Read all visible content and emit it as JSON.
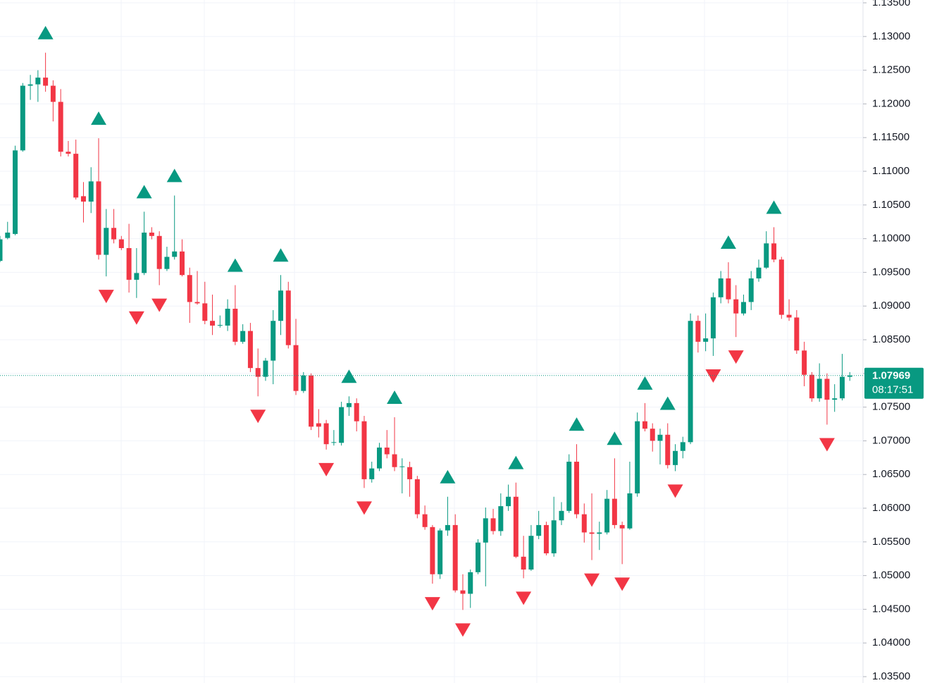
{
  "chart_data": {
    "type": "candlestick",
    "up_color": "#089981",
    "down_color": "#f23645",
    "grid": true,
    "ylim": [
      1.035,
      1.135
    ],
    "yticks": [
      {
        "value": 1.035,
        "label": "1.03500"
      },
      {
        "value": 1.04,
        "label": "1.04000"
      },
      {
        "value": 1.045,
        "label": "1.04500"
      },
      {
        "value": 1.05,
        "label": "1.05000"
      },
      {
        "value": 1.055,
        "label": "1.05500"
      },
      {
        "value": 1.06,
        "label": "1.06000"
      },
      {
        "value": 1.065,
        "label": "1.06500"
      },
      {
        "value": 1.07,
        "label": "1.07000"
      },
      {
        "value": 1.075,
        "label": "1.07500"
      },
      {
        "value": 1.08,
        "label": "1.08000"
      },
      {
        "value": 1.085,
        "label": "1.08500"
      },
      {
        "value": 1.09,
        "label": "1.09000"
      },
      {
        "value": 1.095,
        "label": "1.09500"
      },
      {
        "value": 1.1,
        "label": "1.10000"
      },
      {
        "value": 1.105,
        "label": "1.10500"
      },
      {
        "value": 1.11,
        "label": "1.11000"
      },
      {
        "value": 1.115,
        "label": "1.11500"
      },
      {
        "value": 1.12,
        "label": "1.12000"
      },
      {
        "value": 1.125,
        "label": "1.12500"
      },
      {
        "value": 1.13,
        "label": "1.13000"
      },
      {
        "value": 1.135,
        "label": "1.13500"
      }
    ],
    "open": [
      1.0967,
      1.1001,
      1.1007,
      1.1131,
      1.1227,
      1.1229,
      1.1239,
      1.1227,
      1.1203,
      1.1129,
      1.1126,
      1.1063,
      1.1055,
      1.1085,
      1.0976,
      1.1016,
      1.0999,
      1.0986,
      1.0939,
      1.0949,
      1.1009,
      1.1004,
      1.0955,
      1.0973,
      1.0981,
      1.0946,
      1.0906,
      1.0904,
      1.0878,
      1.0871,
      1.0871,
      1.0896,
      1.0847,
      1.0863,
      1.0808,
      1.0795,
      1.0819,
      1.0878,
      1.0923,
      1.0842,
      1.0774,
      1.0797,
      1.0726,
      1.0726,
      1.0697,
      1.0697,
      1.075,
      1.0756,
      1.0729,
      1.0643,
      1.0659,
      1.069,
      1.068,
      1.0661,
      1.0661,
      1.0643,
      1.0591,
      1.0572,
      1.0502,
      1.0567,
      1.0575,
      1.0478,
      1.0473,
      1.0505,
      1.0549,
      1.0585,
      1.0566,
      1.0603,
      1.0617,
      1.0528,
      1.0509,
      1.0559,
      1.0575,
      1.0533,
      1.0582,
      1.0596,
      1.0669,
      1.0591,
      1.0564,
      1.0562,
      1.0564,
      1.0614,
      1.0575,
      1.057,
      1.0622,
      1.0729,
      1.0718,
      1.07,
      1.0709,
      1.0664,
      1.0685,
      1.0698,
      1.0878,
      1.0847,
      1.0852,
      1.0913,
      1.0941,
      1.091,
      1.0889,
      1.0906,
      1.0941,
      1.0957,
      1.0993,
      1.0969,
      1.0887,
      1.0883,
      1.0834,
      1.0798,
      1.0763,
      1.0792,
      1.0761,
      1.0763,
      1.0795
    ],
    "high": [
      1.1004,
      1.1025,
      1.1138,
      1.1231,
      1.1243,
      1.125,
      1.1276,
      1.1235,
      1.1222,
      1.1145,
      1.1147,
      1.1084,
      1.1106,
      1.1149,
      1.1044,
      1.1044,
      1.1004,
      1.1022,
      1.0986,
      1.104,
      1.1017,
      1.1011,
      1.0988,
      1.1064,
      1.0999,
      1.0957,
      1.0952,
      1.0936,
      1.0917,
      1.0886,
      1.091,
      1.0931,
      1.0873,
      1.0875,
      1.0837,
      1.0823,
      1.0894,
      1.0946,
      1.0936,
      1.0881,
      1.0802,
      1.08,
      1.0747,
      1.0731,
      1.0716,
      1.0758,
      1.0766,
      1.0763,
      1.0737,
      1.0669,
      1.0697,
      1.0716,
      1.0735,
      1.0674,
      1.0669,
      1.0648,
      1.0604,
      1.0575,
      1.057,
      1.0617,
      1.0591,
      1.0502,
      1.0509,
      1.0554,
      1.0601,
      1.0599,
      1.0622,
      1.0635,
      1.0638,
      1.0559,
      1.0575,
      1.0596,
      1.058,
      1.0617,
      1.0609,
      1.068,
      1.0695,
      1.0607,
      1.0622,
      1.058,
      1.0627,
      1.0674,
      1.058,
      1.0669,
      1.0742,
      1.0756,
      1.0726,
      1.0718,
      1.0726,
      1.0695,
      1.0706,
      1.0889,
      1.0886,
      1.0889,
      1.092,
      1.0952,
      1.0965,
      1.0931,
      1.0917,
      1.0952,
      1.0969,
      1.1011,
      1.1017,
      1.0973,
      1.091,
      1.0894,
      1.0847,
      1.0802,
      1.0815,
      1.08,
      1.0784,
      1.0829,
      1.0802
    ],
    "low": [
      1.0965,
      1.0999,
      1.1005,
      1.1129,
      1.1206,
      1.1203,
      1.1218,
      1.1174,
      1.1122,
      1.1122,
      1.1058,
      1.1024,
      1.1038,
      1.0969,
      1.0944,
      1.0993,
      1.0983,
      1.092,
      1.0912,
      1.0946,
      1.0999,
      1.0931,
      1.0952,
      1.0969,
      1.0944,
      1.0875,
      1.0902,
      1.0873,
      1.0857,
      1.0868,
      1.0863,
      1.0842,
      1.0844,
      1.0802,
      1.0766,
      1.0789,
      1.0784,
      1.0857,
      1.0837,
      1.0768,
      1.0771,
      1.0716,
      1.0705,
      1.0687,
      1.0693,
      1.0693,
      1.0737,
      1.0714,
      1.063,
      1.0638,
      1.0655,
      1.0674,
      1.0655,
      1.0622,
      1.0617,
      1.0585,
      1.0568,
      1.0488,
      1.0495,
      1.0559,
      1.0475,
      1.0449,
      1.0452,
      1.0502,
      1.0484,
      1.0561,
      1.0559,
      1.0596,
      1.0526,
      1.0496,
      1.0507,
      1.0554,
      1.053,
      1.0528,
      1.0575,
      1.0593,
      1.0585,
      1.0549,
      1.0523,
      1.0538,
      1.0561,
      1.057,
      1.0517,
      1.0568,
      1.0617,
      1.0714,
      1.0684,
      1.0665,
      1.0659,
      1.0655,
      1.0674,
      1.0695,
      1.0831,
      1.0833,
      1.0826,
      1.0904,
      1.0904,
      1.0854,
      1.0886,
      1.0894,
      1.0936,
      1.0955,
      1.0965,
      1.0881,
      1.0878,
      1.0829,
      1.0781,
      1.0758,
      1.0758,
      1.0724,
      1.0743,
      1.076,
      1.0789
    ],
    "close": [
      1.0999,
      1.1009,
      1.1131,
      1.1227,
      1.1229,
      1.1239,
      1.1227,
      1.1203,
      1.1129,
      1.1126,
      1.1061,
      1.1055,
      1.1085,
      1.0976,
      1.1016,
      1.0999,
      1.0986,
      1.0939,
      1.0949,
      1.1009,
      1.1004,
      1.0955,
      1.0973,
      1.0981,
      1.0946,
      1.0906,
      1.0904,
      1.0878,
      1.0871,
      1.0872,
      1.0896,
      1.0847,
      1.0863,
      1.0808,
      1.0795,
      1.0819,
      1.0878,
      1.0923,
      1.0842,
      1.0774,
      1.0797,
      1.0721,
      1.0721,
      1.0695,
      1.0698,
      1.075,
      1.0756,
      1.0729,
      1.0643,
      1.0659,
      1.069,
      1.068,
      1.0661,
      1.0662,
      1.0643,
      1.0591,
      1.0572,
      1.0502,
      1.0567,
      1.0575,
      1.0478,
      1.0473,
      1.0505,
      1.0549,
      1.0585,
      1.0566,
      1.0603,
      1.0617,
      1.0528,
      1.0509,
      1.0559,
      1.0575,
      1.0533,
      1.0582,
      1.0596,
      1.0669,
      1.0591,
      1.0564,
      1.0562,
      1.0564,
      1.0614,
      1.0575,
      1.057,
      1.0622,
      1.0729,
      1.0718,
      1.07,
      1.0709,
      1.0664,
      1.0685,
      1.0698,
      1.0878,
      1.0847,
      1.0852,
      1.0913,
      1.0941,
      1.091,
      1.0889,
      1.0906,
      1.0941,
      1.0957,
      1.0993,
      1.0969,
      1.0887,
      1.0883,
      1.0834,
      1.0798,
      1.0763,
      1.0792,
      1.0761,
      1.0763,
      1.0795,
      1.0797
    ],
    "up_fractals": [
      6,
      13,
      19,
      23,
      31,
      37,
      46,
      52,
      59,
      68,
      76,
      81,
      85,
      88,
      96,
      102
    ],
    "down_fractals": [
      14,
      18,
      21,
      34,
      43,
      48,
      57,
      61,
      69,
      78,
      82,
      89,
      94,
      97,
      109
    ],
    "last_price": 1.07969,
    "countdown": "08:17:51"
  }
}
